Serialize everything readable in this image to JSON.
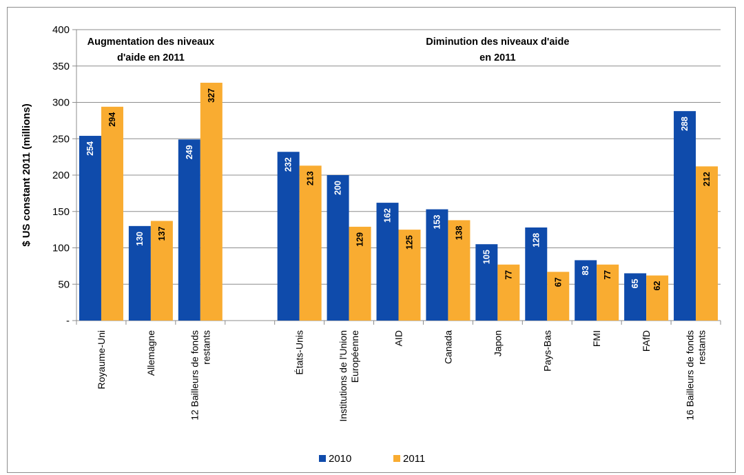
{
  "chart_data": {
    "type": "bar",
    "title": "",
    "xlabel": "",
    "ylabel": "$ US constant 2011 (millions)",
    "ylim": [
      0,
      400
    ],
    "yticks": [
      0,
      50,
      100,
      150,
      200,
      250,
      300,
      350,
      400
    ],
    "ytick_labels": [
      "-",
      "50",
      "100",
      "150",
      "200",
      "250",
      "300",
      "350",
      "400"
    ],
    "grid": true,
    "legend_position": "bottom",
    "categories": [
      [
        "Royaume-Uni"
      ],
      [
        "Allemagne"
      ],
      [
        "12 Bailleurs de fonds",
        "restants"
      ],
      [
        ""
      ],
      [
        "États-Unis"
      ],
      [
        "Institutions de l'Union",
        "Européenne"
      ],
      [
        "AID"
      ],
      [
        "Canada"
      ],
      [
        "Japon"
      ],
      [
        "Pays-Bas"
      ],
      [
        "FMI"
      ],
      [
        "FAfD"
      ],
      [
        "16 Bailleurs de fonds",
        "restants"
      ]
    ],
    "series": [
      {
        "name": "2010",
        "color": "#0f4bab",
        "label_color": "#ffffff",
        "values": [
          254,
          130,
          249,
          null,
          232,
          200,
          162,
          153,
          105,
          128,
          83,
          65,
          288
        ]
      },
      {
        "name": "2011",
        "color": "#f9ac31",
        "label_color": "#000000",
        "values": [
          294,
          137,
          327,
          null,
          213,
          129,
          125,
          138,
          77,
          67,
          77,
          62,
          212
        ]
      }
    ],
    "annotations": [
      {
        "lines": [
          "Augmentation des niveaux",
          "d'aide en 2011"
        ],
        "from_category": 0,
        "to_category": 2
      },
      {
        "lines": [
          "Diminution des niveaux d'aide",
          "en 2011"
        ],
        "from_category": 4,
        "to_category": 12
      }
    ]
  }
}
